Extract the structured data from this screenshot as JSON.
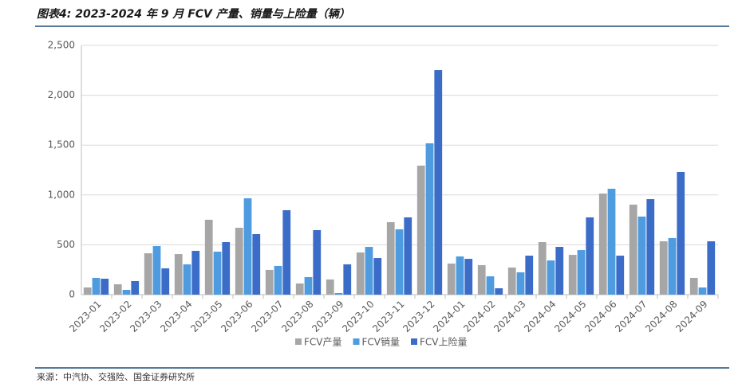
{
  "chart_data": {
    "type": "bar",
    "title": "图表4: 2023-2024 年 9 月 FCV 产量、销量与上险量（辆）",
    "source": "来源：中汽协、交强险、国金证券研究所",
    "categories": [
      "2023-01",
      "2023-02",
      "2023-03",
      "2023-04",
      "2023-05",
      "2023-06",
      "2023-07",
      "2023-08",
      "2023-09",
      "2023-10",
      "2023-11",
      "2023-12",
      "2024-01",
      "2024-02",
      "2024-03",
      "2024-04",
      "2024-05",
      "2024-06",
      "2024-07",
      "2024-08",
      "2024-09"
    ],
    "series": [
      {
        "name": "FCV产量",
        "color": "#a6a6a6",
        "values": [
          72,
          104,
          415,
          407,
          751,
          671,
          248,
          112,
          152,
          423,
          727,
          1294,
          312,
          296,
          272,
          527,
          399,
          1014,
          903,
          535,
          168
        ]
      },
      {
        "name": "FCV销量",
        "color": "#4f9be0",
        "values": [
          168,
          48,
          487,
          304,
          431,
          966,
          288,
          176,
          16,
          479,
          655,
          1518,
          383,
          184,
          224,
          343,
          447,
          1062,
          783,
          567,
          72
        ]
      },
      {
        "name": "FCV上险量",
        "color": "#3a6cc8",
        "values": [
          160,
          136,
          264,
          439,
          527,
          607,
          847,
          647,
          304,
          367,
          775,
          2252,
          359,
          64,
          391,
          479,
          775,
          391,
          958,
          1230,
          535
        ]
      }
    ],
    "ylim": [
      0,
      2500
    ],
    "yticks": [
      0,
      500,
      {
        "value": 1000,
        "label": "1,000"
      },
      {
        "value": 1500,
        "label": "1,500"
      },
      {
        "value": 2000,
        "label": "2,000"
      },
      {
        "value": 2500,
        "label": "2,500"
      }
    ],
    "grid": true,
    "legend": "bottom"
  }
}
